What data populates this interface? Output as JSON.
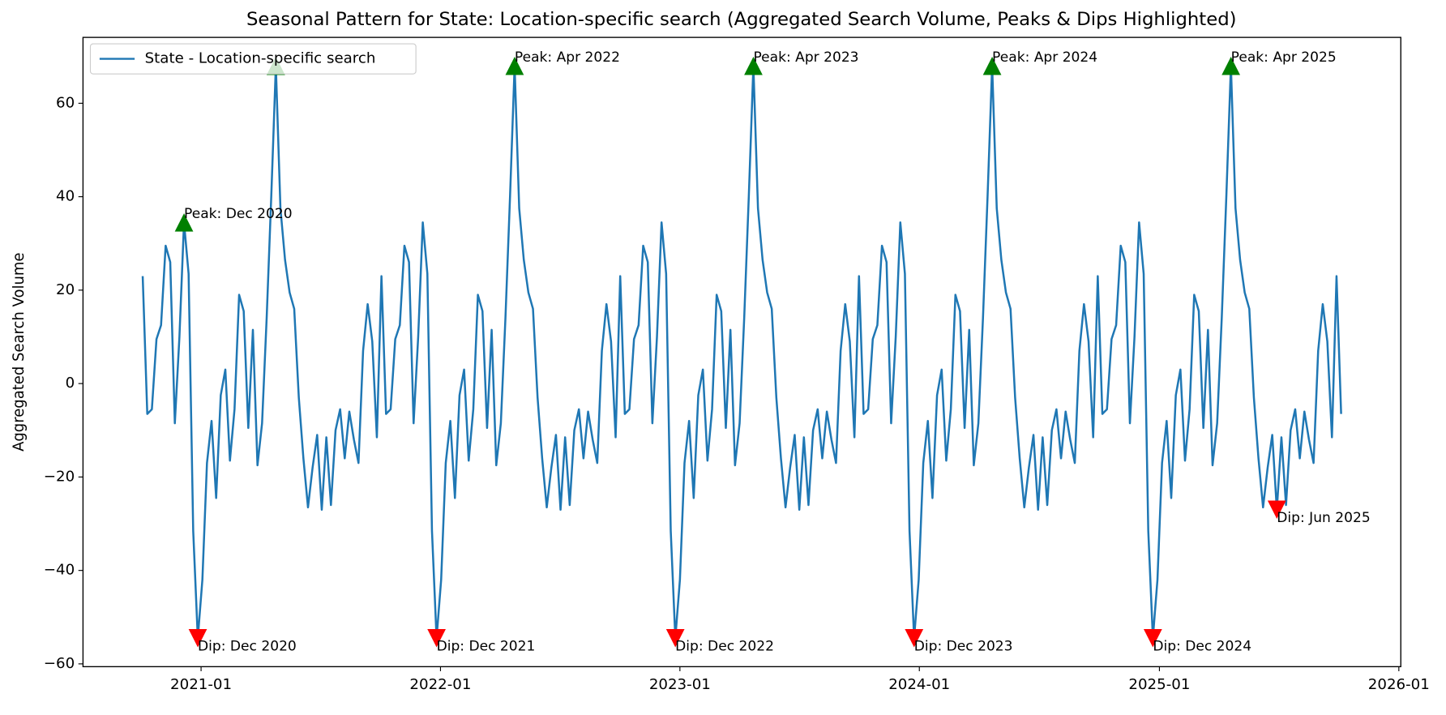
{
  "chart_data": {
    "type": "line",
    "title": "Seasonal Pattern for State: Location-specific search (Aggregated Search Volume, Peaks & Dips Highlighted)",
    "ylabel": "Aggregated Search Volume",
    "x": [
      "2020-10-04",
      "2020-10-11",
      "2020-10-18",
      "2020-10-25",
      "2020-11-01",
      "2020-11-08",
      "2020-11-15",
      "2020-11-22",
      "2020-11-29",
      "2020-12-06",
      "2020-12-13",
      "2020-12-20",
      "2020-12-27",
      "2021-01-03",
      "2021-01-10",
      "2021-01-17",
      "2021-01-24",
      "2021-01-31",
      "2021-02-07",
      "2021-02-14",
      "2021-02-21",
      "2021-02-28",
      "2021-03-07",
      "2021-03-14",
      "2021-03-21",
      "2021-03-28",
      "2021-04-04",
      "2021-04-11",
      "2021-04-18",
      "2021-04-25",
      "2021-05-02",
      "2021-05-09",
      "2021-05-16",
      "2021-05-23",
      "2021-05-30",
      "2021-06-06",
      "2021-06-13",
      "2021-06-20",
      "2021-06-27",
      "2021-07-04",
      "2021-07-11",
      "2021-07-18",
      "2021-07-25",
      "2021-08-01",
      "2021-08-08",
      "2021-08-15",
      "2021-08-22",
      "2021-08-29",
      "2021-09-05",
      "2021-09-12",
      "2021-09-19",
      "2021-09-26",
      "2021-10-03",
      "2021-10-10",
      "2021-10-17",
      "2021-10-24",
      "2021-10-31",
      "2021-11-07",
      "2021-11-14",
      "2021-11-21",
      "2021-11-28",
      "2021-12-05",
      "2021-12-12",
      "2021-12-19",
      "2021-12-26",
      "2022-01-02",
      "2022-01-09",
      "2022-01-16",
      "2022-01-23",
      "2022-01-30",
      "2022-02-06",
      "2022-02-13",
      "2022-02-20",
      "2022-02-27",
      "2022-03-06",
      "2022-03-13",
      "2022-03-20",
      "2022-03-27",
      "2022-04-03",
      "2022-04-10",
      "2022-04-17",
      "2022-04-24",
      "2022-05-01",
      "2022-05-08",
      "2022-05-15",
      "2022-05-22",
      "2022-05-29",
      "2022-06-05",
      "2022-06-12",
      "2022-06-19",
      "2022-06-26",
      "2022-07-03",
      "2022-07-10",
      "2022-07-17",
      "2022-07-24",
      "2022-07-31",
      "2022-08-07",
      "2022-08-14",
      "2022-08-21",
      "2022-08-28",
      "2022-09-04",
      "2022-09-11",
      "2022-09-18",
      "2022-09-25",
      "2022-10-02",
      "2022-10-09",
      "2022-10-16",
      "2022-10-23",
      "2022-10-30",
      "2022-11-06",
      "2022-11-13",
      "2022-11-20",
      "2022-11-27",
      "2022-12-04",
      "2022-12-11",
      "2022-12-18",
      "2022-12-25",
      "2023-01-01",
      "2023-01-08",
      "2023-01-15",
      "2023-01-22",
      "2023-01-29",
      "2023-02-05",
      "2023-02-12",
      "2023-02-19",
      "2023-02-26",
      "2023-03-05",
      "2023-03-12",
      "2023-03-19",
      "2023-03-26",
      "2023-04-02",
      "2023-04-09",
      "2023-04-16",
      "2023-04-23",
      "2023-04-30",
      "2023-05-07",
      "2023-05-14",
      "2023-05-21",
      "2023-05-28",
      "2023-06-04",
      "2023-06-11",
      "2023-06-18",
      "2023-06-25",
      "2023-07-02",
      "2023-07-09",
      "2023-07-16",
      "2023-07-23",
      "2023-07-30",
      "2023-08-06",
      "2023-08-13",
      "2023-08-20",
      "2023-08-27",
      "2023-09-03",
      "2023-09-10",
      "2023-09-17",
      "2023-09-24",
      "2023-10-01",
      "2023-10-08",
      "2023-10-15",
      "2023-10-22",
      "2023-10-29",
      "2023-11-05",
      "2023-11-12",
      "2023-11-19",
      "2023-11-26",
      "2023-12-03",
      "2023-12-10",
      "2023-12-17",
      "2023-12-24",
      "2023-12-31",
      "2024-01-07",
      "2024-01-14",
      "2024-01-21",
      "2024-01-28",
      "2024-02-04",
      "2024-02-11",
      "2024-02-18",
      "2024-02-25",
      "2024-03-03",
      "2024-03-10",
      "2024-03-17",
      "2024-03-24",
      "2024-03-31",
      "2024-04-07",
      "2024-04-14",
      "2024-04-21",
      "2024-04-28",
      "2024-05-05",
      "2024-05-12",
      "2024-05-19",
      "2024-05-26",
      "2024-06-02",
      "2024-06-09",
      "2024-06-16",
      "2024-06-23",
      "2024-06-30",
      "2024-07-07",
      "2024-07-14",
      "2024-07-21",
      "2024-07-28",
      "2024-08-04",
      "2024-08-11",
      "2024-08-18",
      "2024-08-25",
      "2024-09-01",
      "2024-09-08",
      "2024-09-15",
      "2024-09-22",
      "2024-09-29",
      "2024-10-06",
      "2024-10-13",
      "2024-10-20",
      "2024-10-27",
      "2024-11-03",
      "2024-11-10",
      "2024-11-17",
      "2024-11-24",
      "2024-12-01",
      "2024-12-08",
      "2024-12-15",
      "2024-12-22",
      "2024-12-29",
      "2025-01-05",
      "2025-01-12",
      "2025-01-19",
      "2025-01-26",
      "2025-02-02",
      "2025-02-09",
      "2025-02-16",
      "2025-02-23",
      "2025-03-02",
      "2025-03-09",
      "2025-03-16",
      "2025-03-23",
      "2025-03-30",
      "2025-04-06",
      "2025-04-13",
      "2025-04-20",
      "2025-04-27",
      "2025-05-04",
      "2025-05-11",
      "2025-05-18",
      "2025-05-25",
      "2025-06-01",
      "2025-06-08",
      "2025-06-15",
      "2025-06-22",
      "2025-06-29",
      "2025-07-06",
      "2025-07-13",
      "2025-07-20",
      "2025-07-27",
      "2025-08-03",
      "2025-08-10",
      "2025-08-17",
      "2025-08-24",
      "2025-08-31",
      "2025-09-07",
      "2025-09-14",
      "2025-09-21",
      "2025-09-28",
      "2025-10-05"
    ],
    "series": [
      {
        "name": "State - Location-specific search",
        "color": "#1f77b4",
        "values": [
          23,
          -6.5,
          -5.5,
          9.5,
          12.5,
          29.5,
          26,
          -8.5,
          10,
          34.5,
          23.5,
          -31.5,
          -54.5,
          -42,
          -17,
          -8,
          -24.5,
          -2.5,
          3,
          -16.5,
          -5.5,
          19,
          15.5,
          -9.5,
          11.5,
          -17.5,
          -8.5,
          14,
          40,
          68,
          37.5,
          26.5,
          19.5,
          16,
          -3,
          -16,
          -26.5,
          -18,
          -11,
          -27,
          -11.5,
          -26,
          -10,
          -5.5,
          -16,
          -6,
          -12,
          -17,
          7,
          17,
          9,
          -11.5,
          23,
          -6.5,
          -5.5,
          9.5,
          12.5,
          29.5,
          26,
          -8.5,
          10,
          34.5,
          23.5,
          -31.5,
          -54.5,
          -42,
          -17,
          -8,
          -24.5,
          -2.5,
          3,
          -16.5,
          -5.5,
          19,
          15.5,
          -9.5,
          11.5,
          -17.5,
          -8.5,
          14,
          40,
          68,
          37.5,
          26.5,
          19.5,
          16,
          -3,
          -16,
          -26.5,
          -18,
          -11,
          -27,
          -11.5,
          -26,
          -10,
          -5.5,
          -16,
          -6,
          -12,
          -17,
          7,
          17,
          9,
          -11.5,
          23,
          -6.5,
          -5.5,
          9.5,
          12.5,
          29.5,
          26,
          -8.5,
          10,
          34.5,
          23.5,
          -31.5,
          -54.5,
          -42,
          -17,
          -8,
          -24.5,
          -2.5,
          3,
          -16.5,
          -5.5,
          19,
          15.5,
          -9.5,
          11.5,
          -17.5,
          -8.5,
          14,
          40,
          68,
          37.5,
          26.5,
          19.5,
          16,
          -3,
          -16,
          -26.5,
          -18,
          -11,
          -27,
          -11.5,
          -26,
          -10,
          -5.5,
          -16,
          -6,
          -12,
          -17,
          7,
          17,
          9,
          -11.5,
          23,
          -6.5,
          -5.5,
          9.5,
          12.5,
          29.5,
          26,
          -8.5,
          10,
          34.5,
          23.5,
          -31.5,
          -54.5,
          -42,
          -17,
          -8,
          -24.5,
          -2.5,
          3,
          -16.5,
          -5.5,
          19,
          15.5,
          -9.5,
          11.5,
          -17.5,
          -8.5,
          14,
          40,
          68,
          37.5,
          26.5,
          19.5,
          16,
          -3,
          -16,
          -26.5,
          -18,
          -11,
          -27,
          -11.5,
          -26,
          -10,
          -5.5,
          -16,
          -6,
          -12,
          -17,
          7,
          17,
          9,
          -11.5,
          23,
          -6.5,
          -5.5,
          9.5,
          12.5,
          29.5,
          26,
          -8.5,
          10,
          34.5,
          23.5,
          -31.5,
          -54.5,
          -42,
          -17,
          -8,
          -24.5,
          -2.5,
          3,
          -16.5,
          -5.5,
          19,
          15.5,
          -9.5,
          11.5,
          -17.5,
          -8.5,
          14,
          40,
          68,
          37.5,
          26.5,
          19.5,
          16,
          -3,
          -16,
          -26.5,
          -18,
          -11,
          -27,
          -11.5,
          -26,
          -10,
          -5.5,
          -16,
          -6,
          -12,
          -17,
          7,
          17,
          9,
          -11.5,
          23,
          -6.5
        ]
      }
    ],
    "annotations": [
      {
        "kind": "peak",
        "x": "2020-12-06",
        "value": 34.5,
        "label": "Peak: Dec 2020",
        "color": "green"
      },
      {
        "kind": "peak",
        "x": "2021-04-25",
        "value": 68,
        "color": "green"
      },
      {
        "kind": "peak",
        "x": "2022-04-24",
        "value": 68,
        "label": "Peak: Apr 2022",
        "color": "green"
      },
      {
        "kind": "peak",
        "x": "2023-04-23",
        "value": 68,
        "label": "Peak: Apr 2023",
        "color": "green"
      },
      {
        "kind": "peak",
        "x": "2024-04-21",
        "value": 68,
        "label": "Peak: Apr 2024",
        "color": "green"
      },
      {
        "kind": "peak",
        "x": "2025-04-20",
        "value": 68,
        "label": "Peak: Apr 2025",
        "color": "green"
      },
      {
        "kind": "dip",
        "x": "2020-12-27",
        "value": -54.5,
        "label": "Dip: Dec 2020",
        "color": "red"
      },
      {
        "kind": "dip",
        "x": "2021-12-26",
        "value": -54.5,
        "label": "Dip: Dec 2021",
        "color": "red"
      },
      {
        "kind": "dip",
        "x": "2022-12-25",
        "value": -54.5,
        "label": "Dip: Dec 2022",
        "color": "red"
      },
      {
        "kind": "dip",
        "x": "2023-12-24",
        "value": -54.5,
        "label": "Dip: Dec 2023",
        "color": "red"
      },
      {
        "kind": "dip",
        "x": "2024-12-22",
        "value": -54.5,
        "label": "Dip: Dec 2024",
        "color": "red"
      },
      {
        "kind": "dip",
        "x": "2025-06-29",
        "value": -27,
        "label": "Dip: Jun 2025",
        "color": "red"
      }
    ],
    "xlim": [
      "2020-07-05",
      "2026-01-04"
    ],
    "xticks": [
      "2021-01",
      "2022-01",
      "2023-01",
      "2024-01",
      "2025-01",
      "2026-01"
    ],
    "ylim": [
      -60.6,
      74.1
    ],
    "yticks": [
      {
        "value": -60,
        "label": "−60"
      },
      {
        "value": -40,
        "label": "−40"
      },
      {
        "value": -20,
        "label": "−20"
      },
      0,
      20,
      40,
      60
    ],
    "grid": false,
    "legend": "upper left"
  }
}
